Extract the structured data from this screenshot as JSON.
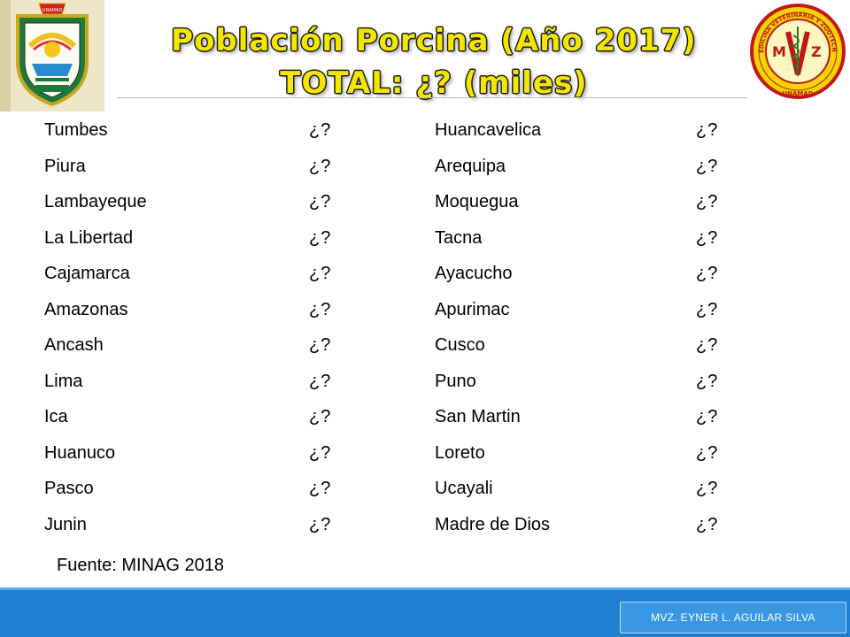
{
  "header": {
    "title_line1": "Población Porcina (Año 2017)",
    "title_line2": "TOTAL: ¿? (miles)"
  },
  "regions_left": [
    {
      "name": "Tumbes",
      "value": "¿?"
    },
    {
      "name": "Piura",
      "value": "¿?"
    },
    {
      "name": "Lambayeque",
      "value": "¿?"
    },
    {
      "name": "La Libertad",
      "value": "¿?"
    },
    {
      "name": "Cajamarca",
      "value": "¿?"
    },
    {
      "name": "Amazonas",
      "value": "¿?"
    },
    {
      "name": "Ancash",
      "value": "¿?"
    },
    {
      "name": "Lima",
      "value": "¿?"
    },
    {
      "name": "Ica",
      "value": "¿?"
    },
    {
      "name": "Huanuco",
      "value": "¿?"
    },
    {
      "name": "Pasco",
      "value": "¿?"
    },
    {
      "name": "Junin",
      "value": "¿?"
    }
  ],
  "regions_right": [
    {
      "name": "Huancavelica",
      "value": "¿?"
    },
    {
      "name": "Arequipa",
      "value": "¿?"
    },
    {
      "name": "Moquegua",
      "value": "¿?"
    },
    {
      "name": "Tacna",
      "value": "¿?"
    },
    {
      "name": "Ayacucho",
      "value": "¿?"
    },
    {
      "name": "Apurimac",
      "value": "¿?"
    },
    {
      "name": "Cusco",
      "value": "¿?"
    },
    {
      "name": "Puno",
      "value": "¿?"
    },
    {
      "name": "San Martin",
      "value": "¿?"
    },
    {
      "name": "Loreto",
      "value": "¿?"
    },
    {
      "name": "Ucayali",
      "value": "¿?"
    },
    {
      "name": "Madre de Dios",
      "value": "¿?"
    }
  ],
  "source": "Fuente: MINAG 2018",
  "footer": {
    "author": "MVZ. EYNER L. AGUILAR SILVA"
  },
  "logos": {
    "left": {
      "text": "UNIVERSIDAD NACIONAL AMAZÓNICA DE MADRE DE DIOS",
      "icon": "university-crest-icon"
    },
    "right": {
      "text_top": "MEDICINA VETERINARIA Y ZOOTECNIA",
      "text_bottom": "UNAMAD",
      "monogram": "MVZ",
      "icon": "faculty-seal-icon"
    }
  },
  "colors": {
    "title": "#f3e600",
    "title_outline": "#1a1a1a",
    "footer": "#1f7fd0",
    "seal_red": "#c01818",
    "seal_yellow": "#f3d400"
  }
}
